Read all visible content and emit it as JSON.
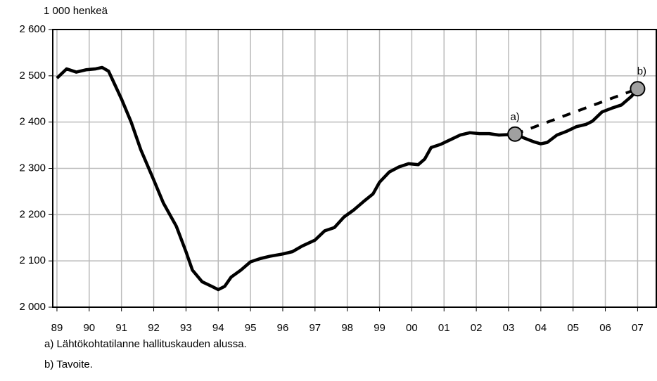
{
  "chart_data": {
    "type": "line",
    "y_axis_label": "1 000 henkeä",
    "xlim": [
      1988.87,
      2007.58
    ],
    "xticks": [
      {
        "value": 1989,
        "label": "89"
      },
      {
        "value": 1990,
        "label": "90"
      },
      {
        "value": 1991,
        "label": "91"
      },
      {
        "value": 1992,
        "label": "92"
      },
      {
        "value": 1993,
        "label": "93"
      },
      {
        "value": 1994,
        "label": "94"
      },
      {
        "value": 1995,
        "label": "95"
      },
      {
        "value": 1996,
        "label": "96"
      },
      {
        "value": 1997,
        "label": "97"
      },
      {
        "value": 1998,
        "label": "98"
      },
      {
        "value": 1999,
        "label": "99"
      },
      {
        "value": 2000,
        "label": "00"
      },
      {
        "value": 2001,
        "label": "01"
      },
      {
        "value": 2002,
        "label": "02"
      },
      {
        "value": 2003,
        "label": "03"
      },
      {
        "value": 2004,
        "label": "04"
      },
      {
        "value": 2005,
        "label": "05"
      },
      {
        "value": 2006,
        "label": "06"
      },
      {
        "value": 2007,
        "label": "07"
      }
    ],
    "ylim": [
      2000,
      2600
    ],
    "yticks": [
      {
        "value": 2000,
        "label": "2 000"
      },
      {
        "value": 2100,
        "label": "2 100"
      },
      {
        "value": 2200,
        "label": "2 200"
      },
      {
        "value": 2300,
        "label": "2 300"
      },
      {
        "value": 2400,
        "label": "2 400"
      },
      {
        "value": 2500,
        "label": "2 500"
      },
      {
        "value": 2600,
        "label": "2 600"
      }
    ],
    "grid": true,
    "series": [
      {
        "color": "#000000",
        "x": [
          1989.0,
          1989.3,
          1989.6,
          1989.9,
          1990.2,
          1990.4,
          1990.6,
          1990.8,
          1991.0,
          1991.3,
          1991.6,
          1992.0,
          1992.3,
          1992.7,
          1993.0,
          1993.2,
          1993.5,
          1993.8,
          1994.0,
          1994.2,
          1994.4,
          1994.7,
          1995.0,
          1995.3,
          1995.6,
          1996.0,
          1996.3,
          1996.6,
          1997.0,
          1997.3,
          1997.6,
          1997.9,
          1998.2,
          1998.5,
          1998.8,
          1999.0,
          1999.3,
          1999.6,
          1999.9,
          2000.2,
          2000.4,
          2000.6,
          2000.9,
          2001.2,
          2001.5,
          2001.8,
          2002.1,
          2002.4,
          2002.7,
          2003.0,
          2003.2,
          2003.5,
          2003.8,
          2004.0,
          2004.2,
          2004.5,
          2004.8,
          2005.1,
          2005.4,
          2005.6,
          2005.9,
          2006.2,
          2006.5,
          2006.8,
          2007.0
        ],
        "values": [
          2495,
          2515,
          2508,
          2513,
          2515,
          2518,
          2510,
          2480,
          2450,
          2400,
          2340,
          2275,
          2225,
          2175,
          2120,
          2080,
          2055,
          2045,
          2038,
          2045,
          2065,
          2080,
          2098,
          2105,
          2110,
          2115,
          2120,
          2132,
          2145,
          2165,
          2172,
          2195,
          2210,
          2228,
          2245,
          2270,
          2292,
          2303,
          2310,
          2308,
          2320,
          2345,
          2352,
          2362,
          2372,
          2377,
          2375,
          2375,
          2372,
          2373,
          2374,
          2365,
          2357,
          2353,
          2356,
          2372,
          2380,
          2390,
          2395,
          2402,
          2422,
          2430,
          2437,
          2455,
          2470
        ]
      },
      {
        "color": "#000000",
        "dashed": true,
        "x": [
          2003.2,
          2007.0
        ],
        "values": [
          2374,
          2472
        ]
      }
    ],
    "points": [
      {
        "label": "a)",
        "x": 2003.2,
        "value": 2374,
        "color": "#a0a0a0"
      },
      {
        "label": "b)",
        "x": 2007.0,
        "value": 2472,
        "color": "#a0a0a0"
      }
    ],
    "notes": [
      "a) Lähtökohtatilanne hallituskauden alussa.",
      "b) Tavoite."
    ]
  }
}
